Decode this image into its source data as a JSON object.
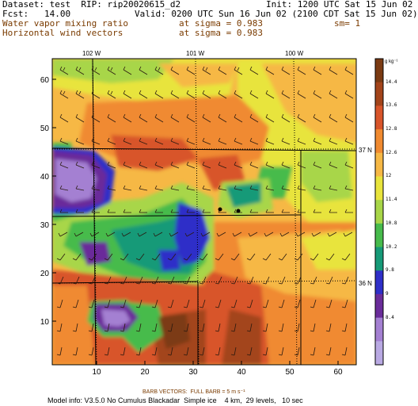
{
  "header": {
    "dataset": "Dataset: test  RIP: rip20020615_d2",
    "init": "Init: 1200 UTC Sat 15 Jun 02",
    "fcst": "Fcst:   14.00",
    "valid": "Valid: 0200 UTC Sun 16 Jun 02 (2100 CDT Sat 15 Jun 02)",
    "field1_name": "Water vapor mixing ratio",
    "field1_level": "at sigma = 0.983",
    "field1_extra": "sm= 1",
    "field2_name": "Horizontal wind vectors",
    "field2_level": "at sigma = 0.983"
  },
  "axes": {
    "x_ticks": [
      "10",
      "20",
      "30",
      "40",
      "50",
      "60"
    ],
    "y_ticks": [
      "10",
      "20",
      "30",
      "40",
      "50",
      "60"
    ],
    "lon_labels": [
      "102 W",
      "101 W",
      "100 W"
    ],
    "lat_labels": [
      "37 N",
      "36 N"
    ]
  },
  "colorbar": {
    "unit": "g kg⁻¹",
    "labels": [
      "14.4",
      "13.6",
      "12.8",
      "12.6",
      "12",
      "11.4",
      "10.8",
      "10.2",
      "9.8",
      "9",
      "8.4"
    ],
    "colors": [
      "#7b3a12",
      "#a3441a",
      "#d8552a",
      "#f08a30",
      "#f6b845",
      "#e8e43c",
      "#a8d648",
      "#47bb4c",
      "#169a78",
      "#2f2fc8",
      "#6a2c9a",
      "#a480d2",
      "#b9a9e3"
    ]
  },
  "footer": {
    "barb_note": "BARB VECTORS:  FULL BARB = 5 m s⁻¹",
    "model_info": "Model info: V3.5.0 No Cumulus Blackadar  Simple ice    4 km,  29 levels,   10 sec"
  },
  "colors": {
    "accent_text": "#7a3b00"
  }
}
